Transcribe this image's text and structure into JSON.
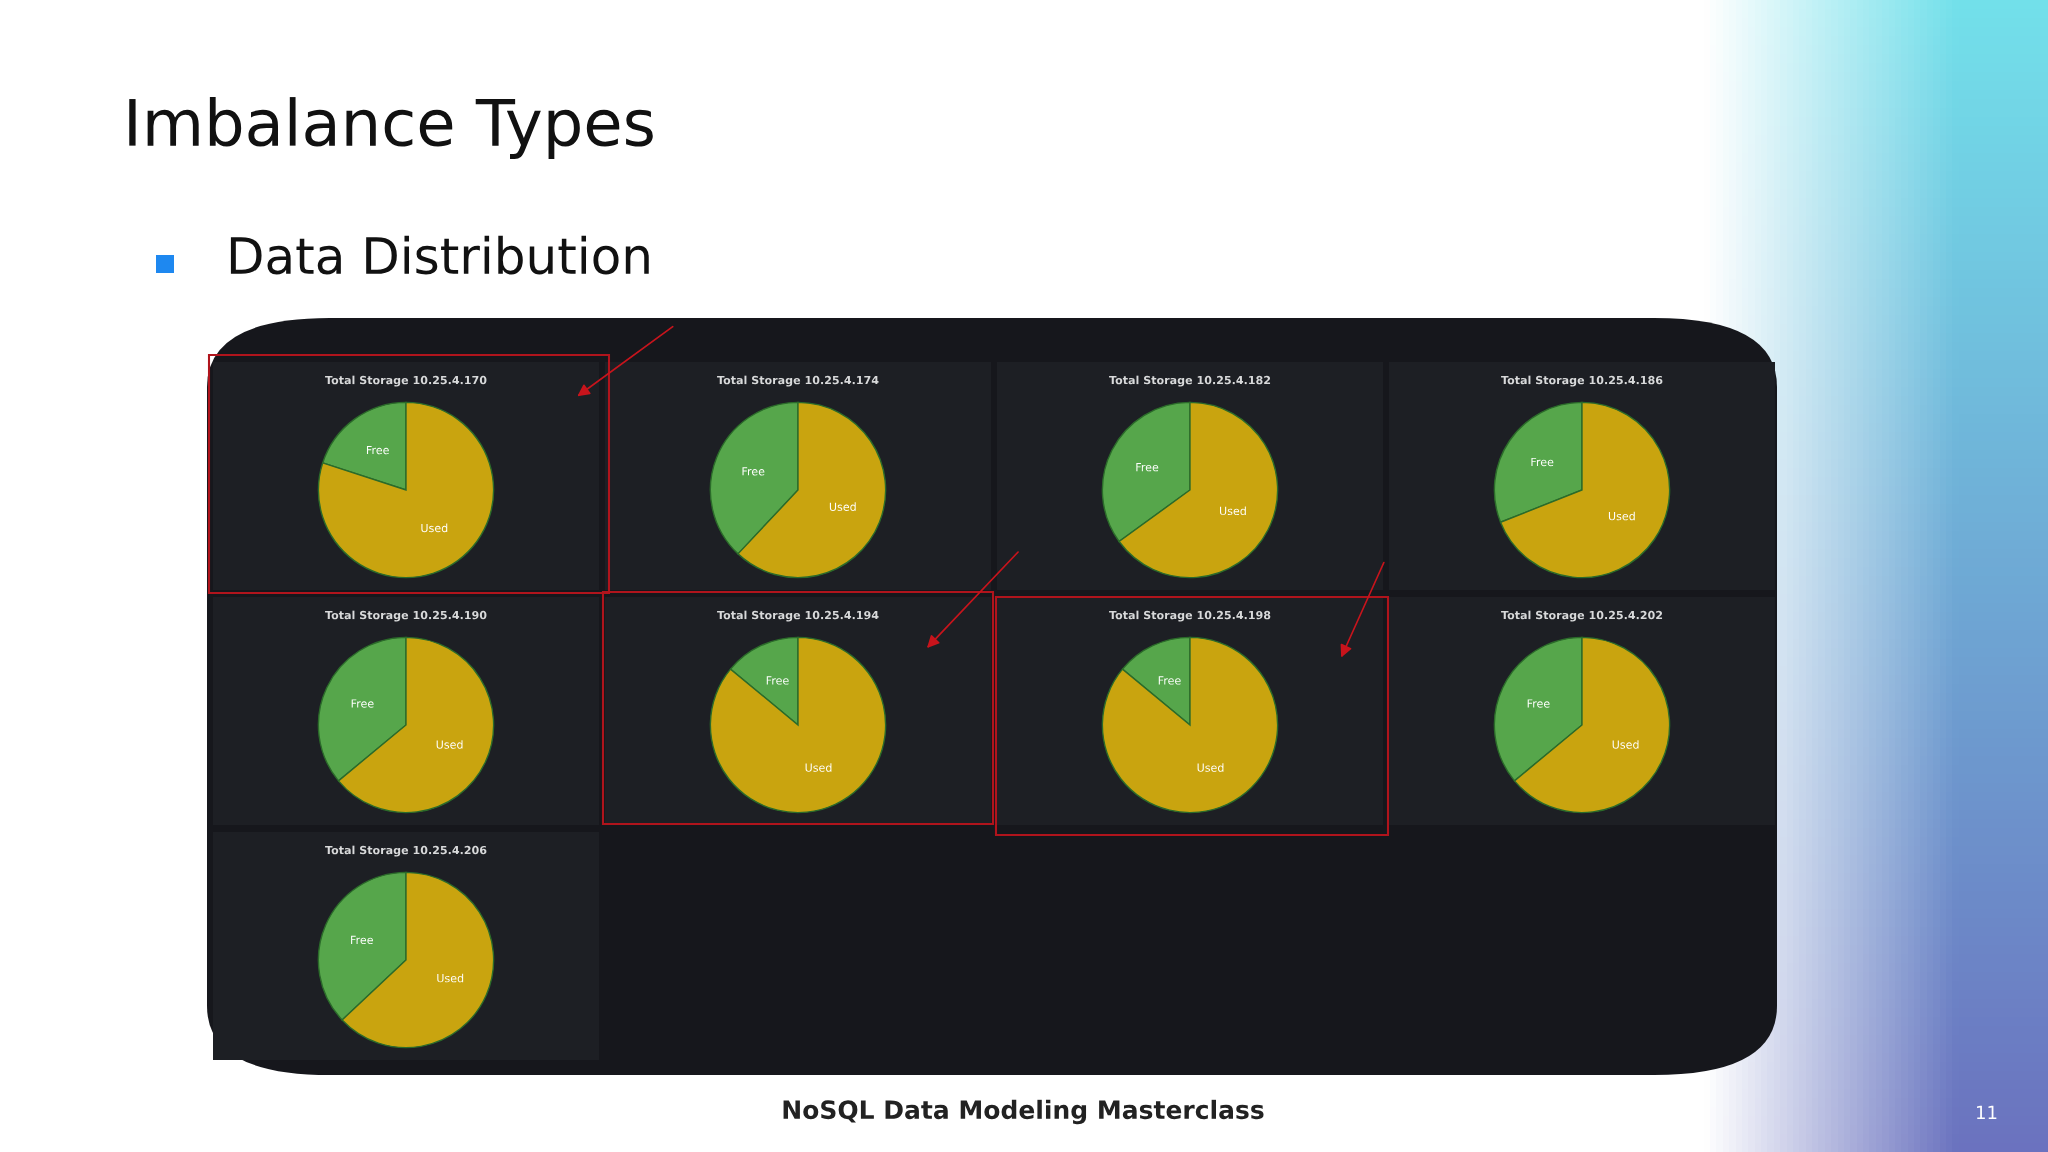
{
  "chart_data": [
    {
      "type": "other",
      "title": "Imbalance Types",
      "subtitle": "Data Distribution",
      "annotations": [
        "NoSQL Data Modeling Masterclass",
        "11"
      ]
    },
    {
      "type": "pie",
      "title": "Total Storage 10.25.4.170",
      "categories": [
        "Free",
        "Used"
      ],
      "values": [
        20,
        80
      ],
      "colors": [
        "#56a64b",
        "#c9a40f"
      ]
    },
    {
      "type": "pie",
      "title": "Total Storage 10.25.4.174",
      "categories": [
        "Free",
        "Used"
      ],
      "values": [
        38,
        62
      ],
      "colors": [
        "#56a64b",
        "#c9a40f"
      ]
    },
    {
      "type": "pie",
      "title": "Total Storage 10.25.4.182",
      "categories": [
        "Free",
        "Used"
      ],
      "values": [
        35,
        65
      ],
      "colors": [
        "#56a64b",
        "#c9a40f"
      ]
    },
    {
      "type": "pie",
      "title": "Total Storage 10.25.4.186",
      "categories": [
        "Free",
        "Used"
      ],
      "values": [
        31,
        69
      ],
      "colors": [
        "#56a64b",
        "#c9a40f"
      ]
    },
    {
      "type": "pie",
      "title": "Total Storage 10.25.4.190",
      "categories": [
        "Free",
        "Used"
      ],
      "values": [
        36,
        64
      ],
      "colors": [
        "#56a64b",
        "#c9a40f"
      ]
    },
    {
      "type": "pie",
      "title": "Total Storage 10.25.4.194",
      "categories": [
        "Free",
        "Used"
      ],
      "values": [
        14,
        86
      ],
      "colors": [
        "#56a64b",
        "#c9a40f"
      ]
    },
    {
      "type": "pie",
      "title": "Total Storage 10.25.4.198",
      "categories": [
        "Free",
        "Used"
      ],
      "values": [
        14,
        86
      ],
      "colors": [
        "#56a64b",
        "#c9a40f"
      ]
    },
    {
      "type": "pie",
      "title": "Total Storage 10.25.4.202",
      "categories": [
        "Free",
        "Used"
      ],
      "values": [
        36,
        64
      ],
      "colors": [
        "#56a64b",
        "#c9a40f"
      ]
    },
    {
      "type": "pie",
      "title": "Total Storage 10.25.4.206",
      "categories": [
        "Free",
        "Used"
      ],
      "values": [
        37,
        63
      ],
      "colors": [
        "#56a64b",
        "#c9a40f"
      ]
    }
  ]
}
